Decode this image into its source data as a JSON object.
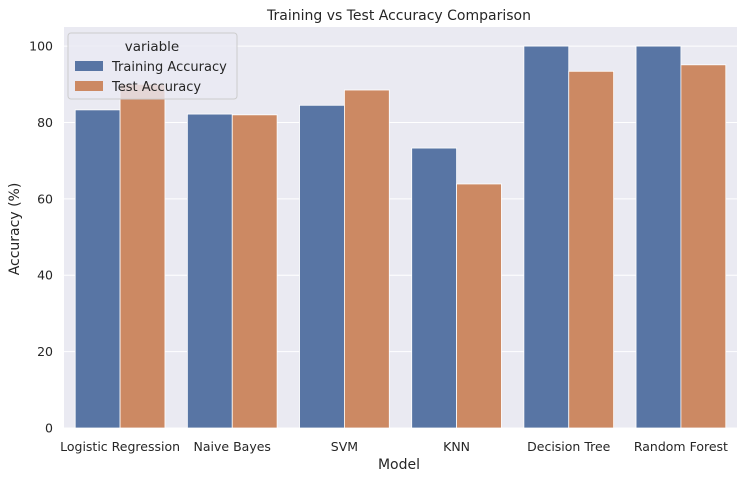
{
  "chart_data": {
    "type": "bar",
    "title": "Training vs Test Accuracy Comparison",
    "xlabel": "Model",
    "ylabel": "Accuracy (%)",
    "categories": [
      "Logistic Regression",
      "Naive Bayes",
      "SVM",
      "KNN",
      "Decision Tree",
      "Random Forest"
    ],
    "series": [
      {
        "name": "Training Accuracy",
        "values": [
          83.3,
          82.2,
          84.5,
          73.3,
          100.0,
          100.0
        ],
        "color": "#5875a4"
      },
      {
        "name": "Test Accuracy",
        "values": [
          90.0,
          82.0,
          88.5,
          63.9,
          93.4,
          95.1
        ],
        "color": "#cc8963"
      }
    ],
    "ylim": [
      0,
      105
    ],
    "yticks": [
      0,
      20,
      40,
      60,
      80,
      100
    ],
    "grid": true,
    "legend": {
      "title": "variable",
      "position": "top-left"
    },
    "background": "#eaeaf2"
  }
}
